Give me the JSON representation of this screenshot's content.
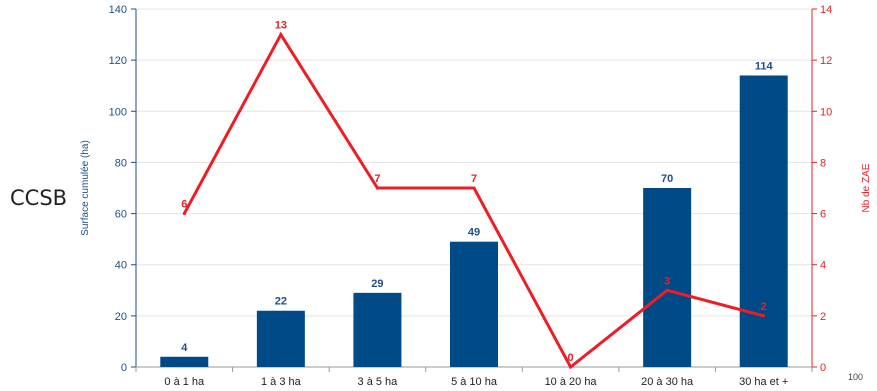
{
  "side_label": "CCSB",
  "corner_text": "100",
  "chart_data": {
    "type": "bar+line",
    "categories": [
      "0 à 1 ha",
      "1 à 3 ha",
      "3 à 5 ha",
      "5 à 10 ha",
      "10 à 20 ha",
      "20 à 30 ha",
      "30 ha et +"
    ],
    "series": [
      {
        "type": "bar",
        "axis": "left",
        "values": [
          4,
          22,
          29,
          49,
          0,
          70,
          114
        ]
      },
      {
        "type": "line",
        "axis": "right",
        "values": [
          6,
          13,
          7,
          7,
          0,
          3,
          2
        ]
      }
    ],
    "ylabel": "Surface cumulée (ha)",
    "y2label": "Nb de ZAE",
    "ylim": [
      0,
      140
    ],
    "y2lim": [
      0,
      14
    ],
    "yticks": [
      0,
      20,
      40,
      60,
      80,
      100,
      120,
      140
    ],
    "y2ticks": [
      0,
      2,
      4,
      6,
      8,
      10,
      12,
      14
    ],
    "colors": {
      "bar": "#004a87",
      "line": "#ee1c25",
      "left_axis": "#1f4e8c",
      "right_axis": "#e8202a"
    }
  }
}
